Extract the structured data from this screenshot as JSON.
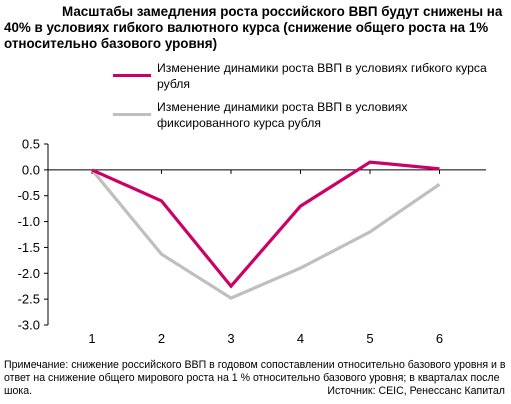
{
  "title": {
    "line1": "Масштабы замедления роста российского ВВП будут снижены на",
    "line2": "40% в условиях гибкого валютного курса (снижение общего роста на 1%",
    "line3": "относительно базового уровня)"
  },
  "note": "Примечание: снижение российского ВВП в годовом сопоставлении относительно базового уровня и в ответ на снижение общего мирового роста на 1 % относительно базового уровня; в кварталах после шока.",
  "source": "Источник: CEIC, Ренессанс Капитал",
  "chart_data": {
    "type": "line",
    "x": [
      1,
      2,
      3,
      4,
      5,
      6
    ],
    "series": [
      {
        "name": "Изменение динамики роста ВВП в условиях гибкого курса рубля",
        "color": "#cc0066",
        "values": [
          0.0,
          -0.6,
          -2.25,
          -0.7,
          0.15,
          0.02
        ]
      },
      {
        "name": "Изменение динамики роста ВВП в условиях фиксированного курса рубля",
        "color": "#bfbfbf",
        "values": [
          0.0,
          -1.63,
          -2.48,
          -1.9,
          -1.2,
          -0.28
        ]
      }
    ],
    "ylim": [
      -3.0,
      0.5
    ],
    "yticks": [
      "0.5",
      "0.0",
      "-0.5",
      "-1.0",
      "-1.5",
      "-2.0",
      "-2.5",
      "-3.0"
    ],
    "xticks": [
      "1",
      "2",
      "3",
      "4",
      "5",
      "6"
    ],
    "legend_position": "top",
    "grid": false
  }
}
